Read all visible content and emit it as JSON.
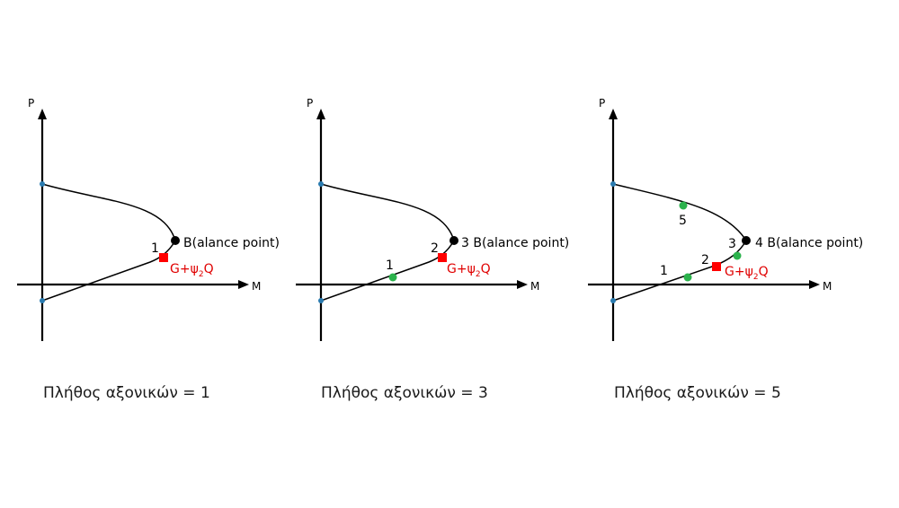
{
  "colors": {
    "curve": "#000000",
    "endpoint": "#2a7bb0",
    "balance_point": "#000000",
    "load_point": "#ff0000",
    "load_label": "#e00000",
    "intermediate": "#2bb24c"
  },
  "axis_labels": {
    "y": "P",
    "x": "M"
  },
  "load_label": {
    "main": "G+ψ",
    "sub": "2",
    "end": "Q"
  },
  "panels": [
    {
      "caption": "Πλήθος αξονικών = 1",
      "balance_label": "B(alance point)",
      "numbers": [
        "1"
      ],
      "green_count": 0
    },
    {
      "caption": "Πλήθος αξονικών = 3",
      "balance_label": "3 B(alance point)",
      "numbers": [
        "1",
        "2"
      ],
      "green_count": 1
    },
    {
      "caption": "Πλήθος αξονικών = 5",
      "balance_label": "4 B(alance point)",
      "numbers": [
        "1",
        "2",
        "3",
        "5"
      ],
      "green_count": 3
    }
  ]
}
